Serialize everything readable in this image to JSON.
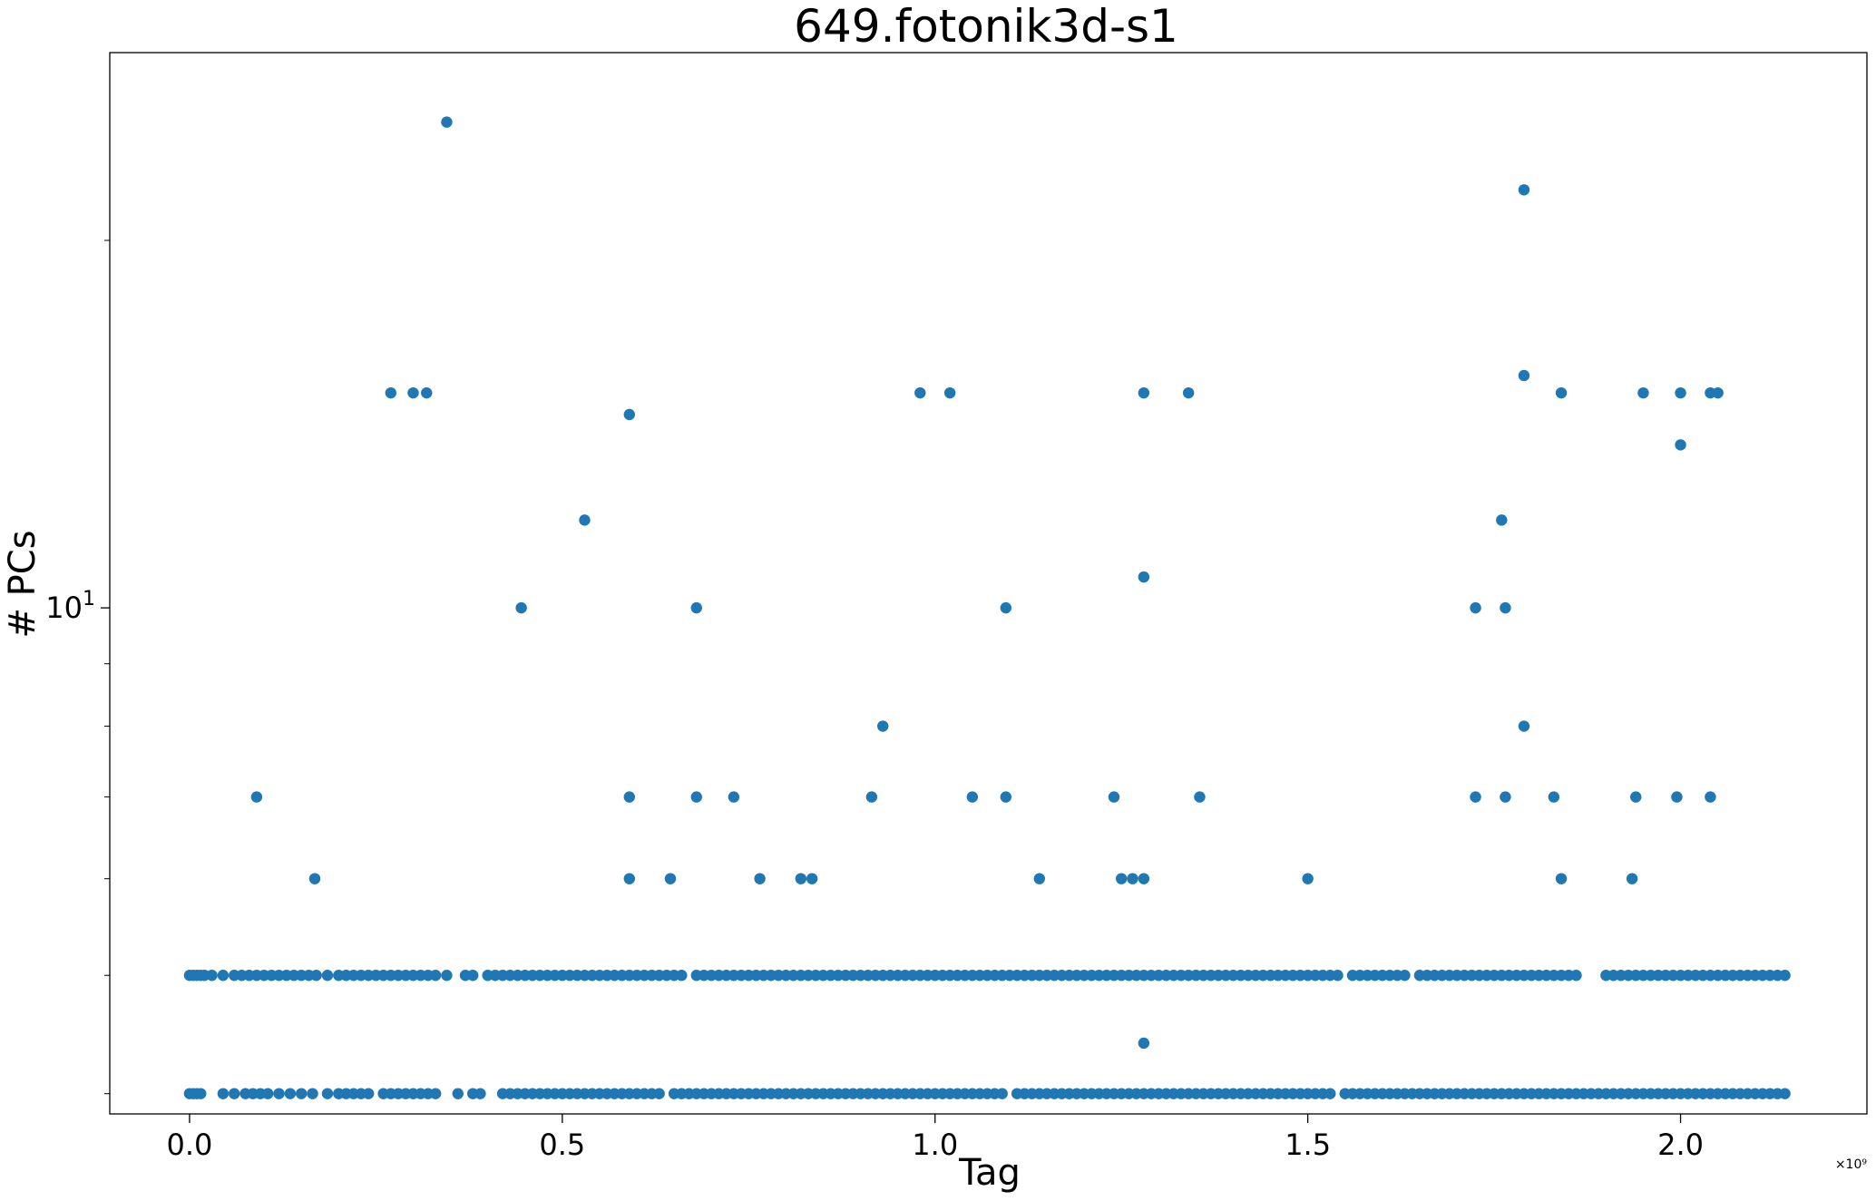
{
  "chart_data": {
    "type": "scatter",
    "title": "649.fotonik3d-s1",
    "xlabel": "Tag",
    "ylabel": "# PCs",
    "x_offset_label": "×10⁹",
    "xlim": [
      -0.107,
      2.25
    ],
    "ylim": [
      3.85,
      28.5
    ],
    "yscale": "log",
    "grid": false,
    "color": "#1f77b4",
    "x_ticks": [
      {
        "value": 0.0,
        "label": "0.0"
      },
      {
        "value": 0.5,
        "label": "0.5"
      },
      {
        "value": 1.0,
        "label": "1.0"
      },
      {
        "value": 1.5,
        "label": "1.5"
      },
      {
        "value": 2.0,
        "label": "2.0"
      }
    ],
    "y_major_ticks": [
      {
        "value": 10,
        "label": "10",
        "sup": "1"
      }
    ],
    "y_minor_ticks": [
      4,
      5,
      6,
      7,
      8,
      9,
      20
    ],
    "series": [
      {
        "band_4_x": [
          0.0,
          0.005,
          0.01,
          0.015,
          0.02,
          0.03,
          0.045,
          0.06,
          0.07,
          0.08,
          0.09,
          0.1,
          0.11,
          0.12,
          0.13,
          0.14,
          0.15,
          0.16,
          0.17,
          0.185,
          0.2,
          0.21,
          0.22,
          0.23,
          0.24,
          0.25,
          0.26,
          0.27,
          0.28,
          0.29,
          0.3,
          0.31,
          0.32,
          0.33,
          0.345,
          0.37,
          0.38,
          0.4,
          0.41,
          0.42,
          0.43,
          0.44,
          0.45,
          0.46,
          0.47,
          0.48,
          0.49,
          0.5,
          0.51,
          0.52,
          0.53,
          0.54,
          0.55,
          0.56,
          0.57,
          0.58,
          0.59,
          0.6,
          0.61,
          0.62,
          0.63,
          0.64,
          0.65,
          0.66,
          0.68,
          0.69,
          0.7,
          0.71,
          0.72,
          0.73,
          0.74,
          0.75,
          0.76,
          0.77,
          0.78,
          0.79,
          0.8,
          0.81,
          0.82,
          0.83,
          0.84,
          0.85,
          0.86,
          0.87,
          0.88,
          0.89,
          0.9,
          0.91,
          0.92,
          0.93,
          0.94,
          0.95,
          0.96,
          0.97,
          0.98,
          0.99,
          1.0,
          1.01,
          1.02,
          1.03,
          1.04,
          1.05,
          1.06,
          1.07,
          1.08,
          1.09,
          1.1,
          1.11,
          1.12,
          1.13,
          1.14,
          1.15,
          1.16,
          1.17,
          1.18,
          1.19,
          1.2,
          1.21,
          1.22,
          1.23,
          1.24,
          1.25,
          1.26,
          1.27,
          1.28,
          1.29,
          1.3,
          1.31,
          1.32,
          1.33,
          1.34,
          1.35,
          1.36,
          1.37,
          1.38,
          1.39,
          1.4,
          1.41,
          1.42,
          1.43,
          1.44,
          1.45,
          1.46,
          1.47,
          1.48,
          1.49,
          1.5,
          1.51,
          1.52,
          1.53,
          1.54,
          1.56,
          1.57,
          1.58,
          1.59,
          1.6,
          1.61,
          1.62,
          1.63,
          1.65,
          1.66,
          1.67,
          1.68,
          1.69,
          1.7,
          1.71,
          1.72,
          1.73,
          1.74,
          1.75,
          1.76,
          1.77,
          1.78,
          1.79,
          1.8,
          1.81,
          1.82,
          1.83,
          1.84,
          1.85,
          1.86,
          1.9,
          1.91,
          1.92,
          1.93,
          1.94,
          1.95,
          1.96,
          1.97,
          1.98,
          1.99,
          2.0,
          2.01,
          2.02,
          2.03,
          2.04,
          2.05,
          2.06,
          2.07,
          2.08,
          2.09,
          2.1,
          2.11,
          2.12,
          2.13,
          2.14
        ],
        "band_5_x": [
          0.0,
          0.005,
          0.01,
          0.015,
          0.045,
          0.06,
          0.075,
          0.085,
          0.095,
          0.105,
          0.12,
          0.135,
          0.15,
          0.165,
          0.185,
          0.2,
          0.21,
          0.22,
          0.23,
          0.24,
          0.26,
          0.27,
          0.28,
          0.29,
          0.3,
          0.31,
          0.32,
          0.33,
          0.36,
          0.38,
          0.39,
          0.42,
          0.43,
          0.44,
          0.45,
          0.46,
          0.47,
          0.48,
          0.49,
          0.5,
          0.51,
          0.52,
          0.53,
          0.54,
          0.55,
          0.56,
          0.57,
          0.58,
          0.59,
          0.6,
          0.61,
          0.62,
          0.63,
          0.65,
          0.66,
          0.67,
          0.68,
          0.69,
          0.7,
          0.71,
          0.72,
          0.73,
          0.74,
          0.75,
          0.76,
          0.77,
          0.78,
          0.79,
          0.8,
          0.81,
          0.82,
          0.83,
          0.84,
          0.85,
          0.86,
          0.87,
          0.88,
          0.89,
          0.9,
          0.91,
          0.92,
          0.93,
          0.94,
          0.95,
          0.96,
          0.97,
          0.98,
          0.99,
          1.0,
          1.01,
          1.02,
          1.03,
          1.04,
          1.05,
          1.06,
          1.07,
          1.08,
          1.09,
          1.11,
          1.12,
          1.13,
          1.14,
          1.15,
          1.16,
          1.17,
          1.18,
          1.19,
          1.2,
          1.21,
          1.22,
          1.23,
          1.24,
          1.25,
          1.26,
          1.27,
          1.28,
          1.29,
          1.3,
          1.31,
          1.32,
          1.33,
          1.34,
          1.35,
          1.36,
          1.37,
          1.38,
          1.39,
          1.4,
          1.41,
          1.42,
          1.43,
          1.44,
          1.45,
          1.46,
          1.47,
          1.48,
          1.49,
          1.5,
          1.51,
          1.52,
          1.53,
          1.55,
          1.56,
          1.57,
          1.58,
          1.59,
          1.6,
          1.61,
          1.62,
          1.63,
          1.64,
          1.65,
          1.66,
          1.67,
          1.68,
          1.69,
          1.7,
          1.71,
          1.72,
          1.73,
          1.74,
          1.75,
          1.76,
          1.77,
          1.78,
          1.79,
          1.8,
          1.81,
          1.82,
          1.83,
          1.84,
          1.85,
          1.86,
          1.87,
          1.88,
          1.89,
          1.9,
          1.91,
          1.92,
          1.93,
          1.94,
          1.95,
          1.96,
          1.97,
          1.98,
          1.99,
          2.0,
          2.01,
          2.02,
          2.03,
          2.04,
          2.05,
          2.06,
          2.07,
          2.08,
          2.09,
          2.1,
          2.11,
          2.12,
          2.13,
          2.14
        ],
        "other_points": [
          {
            "x": 0.345,
            "y": 25
          },
          {
            "x": 1.79,
            "y": 22
          },
          {
            "x": 1.79,
            "y": 15.5
          },
          {
            "x": 0.27,
            "y": 15
          },
          {
            "x": 0.3,
            "y": 15
          },
          {
            "x": 0.318,
            "y": 15
          },
          {
            "x": 0.98,
            "y": 15
          },
          {
            "x": 1.02,
            "y": 15
          },
          {
            "x": 1.28,
            "y": 15
          },
          {
            "x": 1.34,
            "y": 15
          },
          {
            "x": 1.84,
            "y": 15
          },
          {
            "x": 1.95,
            "y": 15
          },
          {
            "x": 2.0,
            "y": 15
          },
          {
            "x": 2.04,
            "y": 15
          },
          {
            "x": 2.05,
            "y": 15
          },
          {
            "x": 0.59,
            "y": 14.4
          },
          {
            "x": 2.0,
            "y": 13.6
          },
          {
            "x": 0.53,
            "y": 11.8
          },
          {
            "x": 1.76,
            "y": 11.8
          },
          {
            "x": 1.28,
            "y": 10.6
          },
          {
            "x": 0.445,
            "y": 10
          },
          {
            "x": 0.68,
            "y": 10
          },
          {
            "x": 1.095,
            "y": 10
          },
          {
            "x": 1.725,
            "y": 10
          },
          {
            "x": 1.765,
            "y": 10
          },
          {
            "x": 0.93,
            "y": 8
          },
          {
            "x": 1.79,
            "y": 8
          },
          {
            "x": 0.09,
            "y": 7
          },
          {
            "x": 0.59,
            "y": 7
          },
          {
            "x": 0.68,
            "y": 7
          },
          {
            "x": 0.73,
            "y": 7
          },
          {
            "x": 0.915,
            "y": 7
          },
          {
            "x": 1.05,
            "y": 7
          },
          {
            "x": 1.095,
            "y": 7
          },
          {
            "x": 1.24,
            "y": 7
          },
          {
            "x": 1.355,
            "y": 7
          },
          {
            "x": 1.725,
            "y": 7
          },
          {
            "x": 1.765,
            "y": 7
          },
          {
            "x": 1.83,
            "y": 7
          },
          {
            "x": 1.94,
            "y": 7
          },
          {
            "x": 1.995,
            "y": 7
          },
          {
            "x": 2.04,
            "y": 7
          },
          {
            "x": 0.168,
            "y": 6
          },
          {
            "x": 0.59,
            "y": 6
          },
          {
            "x": 0.645,
            "y": 6
          },
          {
            "x": 0.765,
            "y": 6
          },
          {
            "x": 0.82,
            "y": 6
          },
          {
            "x": 0.835,
            "y": 6
          },
          {
            "x": 1.14,
            "y": 6
          },
          {
            "x": 1.25,
            "y": 6
          },
          {
            "x": 1.265,
            "y": 6
          },
          {
            "x": 1.28,
            "y": 6
          },
          {
            "x": 1.5,
            "y": 6
          },
          {
            "x": 1.84,
            "y": 6
          },
          {
            "x": 1.935,
            "y": 6
          },
          {
            "x": 1.28,
            "y": 4.4
          }
        ]
      }
    ]
  }
}
